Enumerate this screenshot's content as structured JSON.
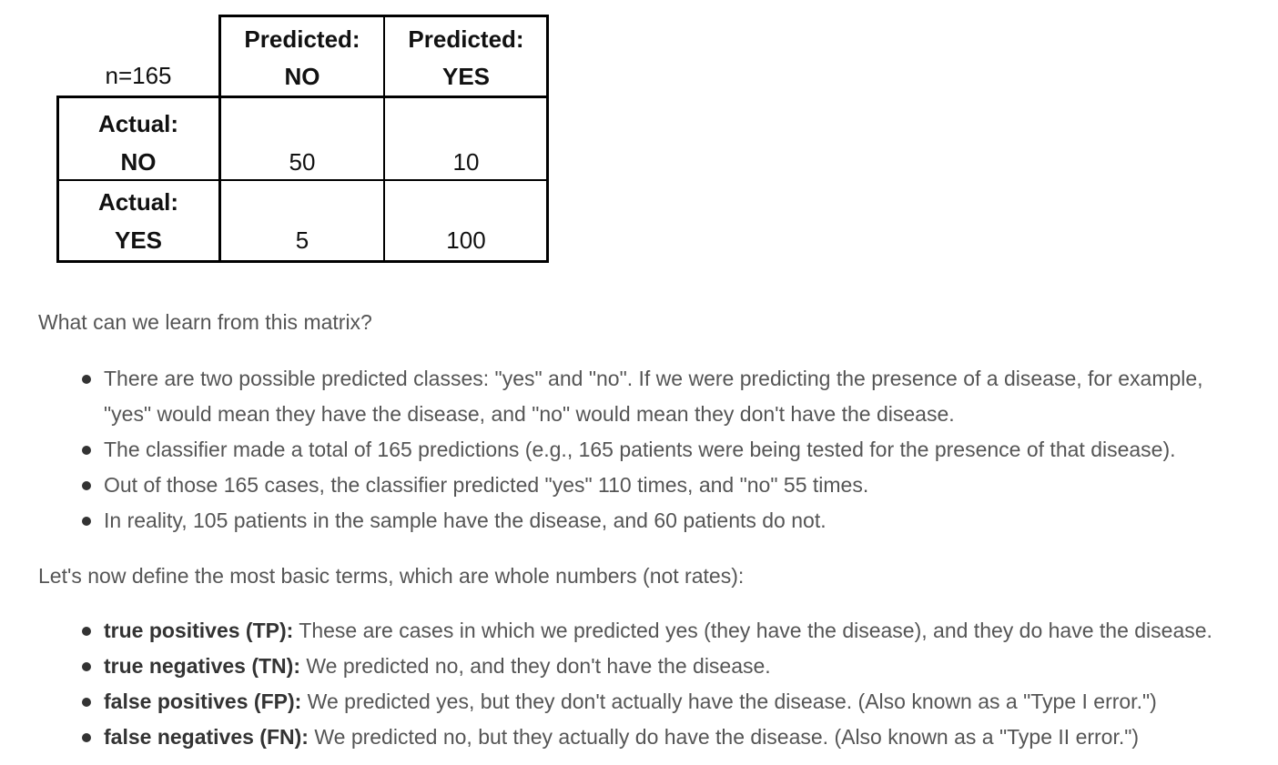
{
  "matrix": {
    "n_label": "n=165",
    "pred_no": [
      "Predicted:",
      "NO"
    ],
    "pred_yes": [
      "Predicted:",
      "YES"
    ],
    "act_no": [
      "Actual:",
      "NO"
    ],
    "act_yes": [
      "Actual:",
      "YES"
    ],
    "tn": "50",
    "fp": "10",
    "fn": "5",
    "tp": "100"
  },
  "intro_question": "What can we learn from this matrix?",
  "facts": [
    "There are two possible predicted classes: \"yes\" and \"no\". If we were predicting the presence of a disease, for example,",
    "\"yes\" would mean they have the disease, and \"no\" would mean they don't have the disease.",
    "The classifier made a total of 165 predictions (e.g., 165 patients were being tested for the presence of that disease).",
    "Out of those 165 cases, the classifier predicted \"yes\" 110 times, and \"no\" 55 times.",
    "In reality, 105 patients in the sample have the disease, and 60 patients do not."
  ],
  "terms_intro": "Let's now define the most basic terms, which are whole numbers (not rates):",
  "terms": [
    {
      "term": "true positives (TP):",
      "desc": " These are cases in which we predicted yes (they have the disease), and they do have the disease."
    },
    {
      "term": "true negatives (TN):",
      "desc": " We predicted no, and they don't have the disease."
    },
    {
      "term": "false positives (FP):",
      "desc": " We predicted yes, but they don't actually have the disease. (Also known as a \"Type I error.\")"
    },
    {
      "term": "false negatives (FN):",
      "desc": " We predicted no, but they actually do have the disease. (Also known as a \"Type II error.\")"
    }
  ]
}
